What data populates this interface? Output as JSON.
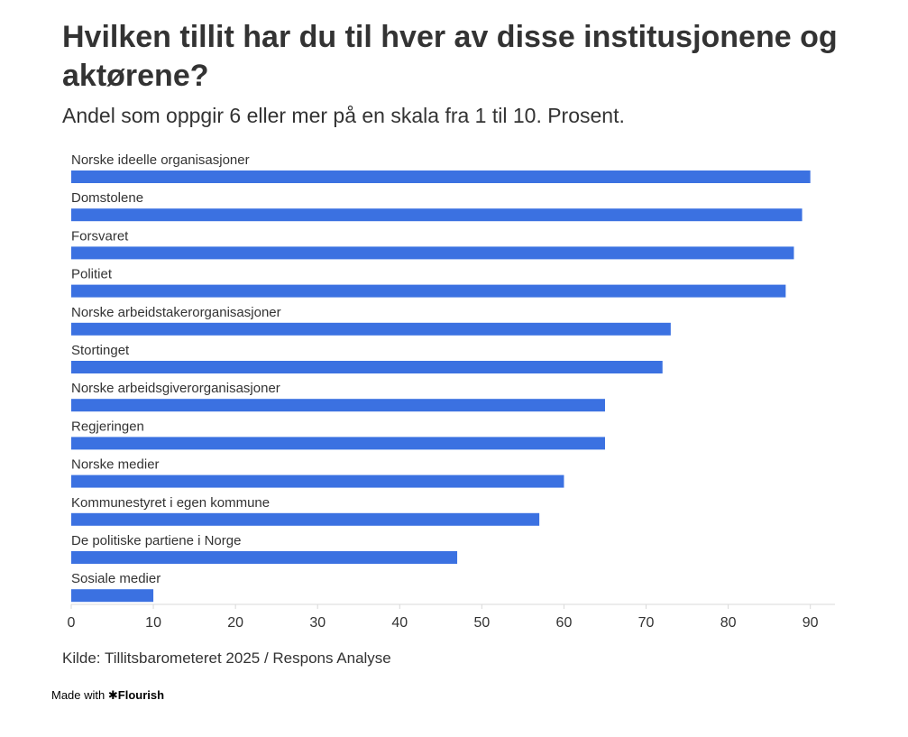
{
  "header": {
    "title": "Hvilken tillit har du til hver av disse institusjonene og aktørene?",
    "subtitle": "Andel som oppgir 6 eller mer på en skala fra 1 til 10. Prosent."
  },
  "footer": {
    "source": "Kilde: Tillitsbarometeret 2025 / Respons Analyse",
    "made_with": "Made with",
    "brand": "Flourish",
    "brand_icon": "asterisk-icon"
  },
  "chart_data": {
    "type": "bar",
    "orientation": "horizontal",
    "categories": [
      "Norske ideelle organisasjoner",
      "Domstolene",
      "Forsvaret",
      "Politiet",
      "Norske arbeidstakerorganisasjoner",
      "Stortinget",
      "Norske arbeidsgiverorganisasjoner",
      "Regjeringen",
      "Norske medier",
      "Kommunestyret i egen kommune",
      "De politiske partiene i Norge",
      "Sosiale medier"
    ],
    "values": [
      90,
      89,
      88,
      87,
      73,
      72,
      65,
      65,
      60,
      57,
      47,
      10
    ],
    "xlim": [
      0,
      93
    ],
    "xticks": [
      0,
      10,
      20,
      30,
      40,
      50,
      60,
      70,
      80,
      90
    ],
    "bar_color": "#3b71e1",
    "grid": false,
    "legend": "none"
  }
}
